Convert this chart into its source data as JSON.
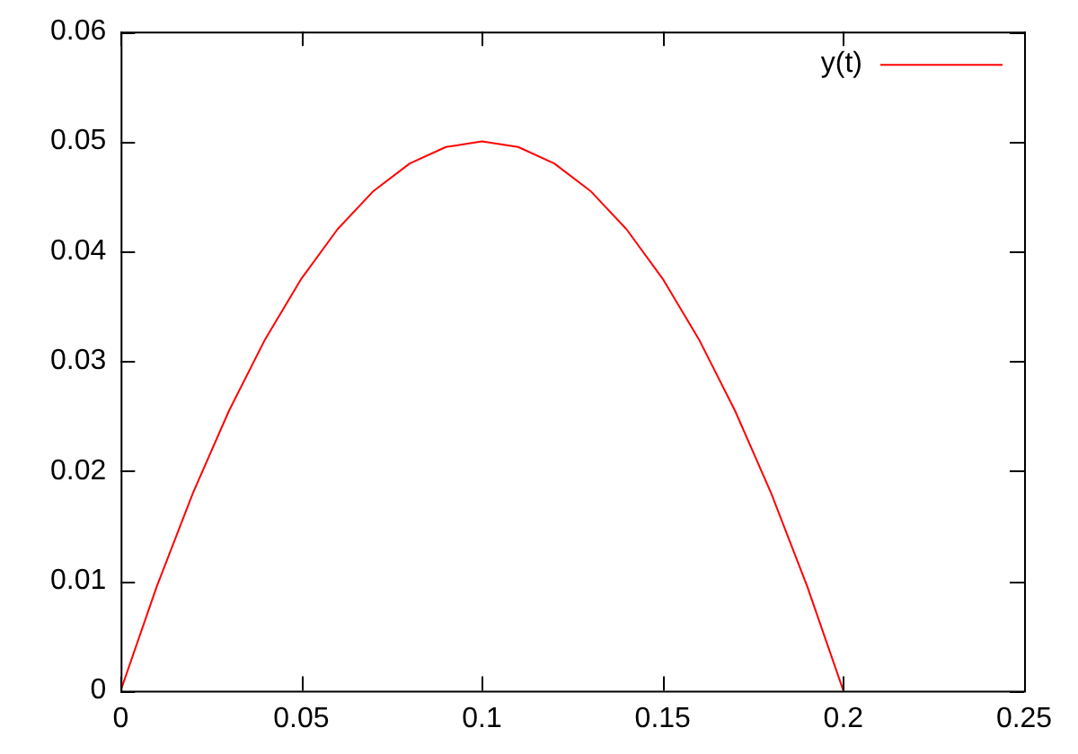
{
  "chart_data": {
    "type": "line",
    "x": [
      0,
      0.01,
      0.02,
      0.03,
      0.04,
      0.05,
      0.06,
      0.07,
      0.08,
      0.09,
      0.1,
      0.11,
      0.12,
      0.13,
      0.14,
      0.15,
      0.16,
      0.17,
      0.18,
      0.19,
      0.2
    ],
    "series": [
      {
        "name": "y(t)",
        "color": "#ff0000",
        "values": [
          0,
          0.0095,
          0.018,
          0.0255,
          0.032,
          0.0375,
          0.042,
          0.0455,
          0.048,
          0.0495,
          0.05,
          0.0495,
          0.048,
          0.0455,
          0.042,
          0.0375,
          0.032,
          0.0255,
          0.018,
          0.0095,
          0
        ]
      }
    ],
    "xlim": [
      0,
      0.25
    ],
    "xticks": [
      0,
      0.05,
      0.1,
      0.15,
      0.2,
      0.25
    ],
    "ylim": [
      0,
      0.06
    ],
    "yticks": [
      0,
      0.01,
      0.02,
      0.03,
      0.04,
      0.05,
      0.06
    ],
    "grid": false,
    "legend": "top right",
    "marker": "none",
    "line_style": "solid"
  }
}
